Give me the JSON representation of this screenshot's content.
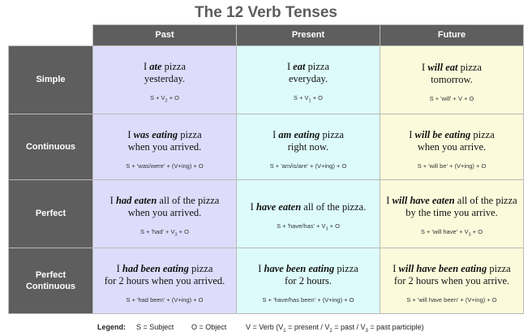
{
  "title": "The 12 Verb Tenses",
  "columns": [
    "Past",
    "Present",
    "Future"
  ],
  "rows": [
    {
      "label_lines": [
        "Simple"
      ],
      "cells": [
        {
          "parts": [
            {
              "t": "I "
            },
            {
              "t": "ate",
              "b": true
            },
            {
              "t": " pizza"
            },
            {
              "br": true
            },
            {
              "t": "yesterday."
            }
          ],
          "formula": [
            {
              "t": "S + V"
            },
            {
              "sub": "2"
            },
            {
              "t": " + O"
            }
          ]
        },
        {
          "parts": [
            {
              "t": "I "
            },
            {
              "t": "eat",
              "b": true
            },
            {
              "t": " pizza"
            },
            {
              "br": true
            },
            {
              "t": "everyday."
            }
          ],
          "formula": [
            {
              "t": "S + V"
            },
            {
              "sub": "1"
            },
            {
              "t": " + O"
            }
          ]
        },
        {
          "parts": [
            {
              "t": "I "
            },
            {
              "t": "will eat",
              "b": true
            },
            {
              "t": " pizza"
            },
            {
              "br": true
            },
            {
              "t": "tomorrow."
            }
          ],
          "formula": [
            {
              "t": "S + 'will' + V + O"
            }
          ]
        }
      ]
    },
    {
      "label_lines": [
        "Continuous"
      ],
      "cells": [
        {
          "parts": [
            {
              "t": "I "
            },
            {
              "t": "was eating",
              "b": true
            },
            {
              "t": " pizza"
            },
            {
              "br": true
            },
            {
              "t": "when you arrived."
            }
          ],
          "formula": [
            {
              "t": "S + 'was/were' + (V+ing) + O"
            }
          ]
        },
        {
          "parts": [
            {
              "t": "I "
            },
            {
              "t": "am eating",
              "b": true
            },
            {
              "t": " pizza"
            },
            {
              "br": true
            },
            {
              "t": "right now."
            }
          ],
          "formula": [
            {
              "t": "S + 'am/is/are' + (V+ing) + O"
            }
          ]
        },
        {
          "parts": [
            {
              "t": "I "
            },
            {
              "t": "will be eating",
              "b": true
            },
            {
              "t": " pizza"
            },
            {
              "br": true
            },
            {
              "t": "when you arrive."
            }
          ],
          "formula": [
            {
              "t": "S + 'will be' + (V+ing) + O"
            }
          ]
        }
      ]
    },
    {
      "label_lines": [
        "Perfect"
      ],
      "cells": [
        {
          "parts": [
            {
              "t": "I "
            },
            {
              "t": "had eaten",
              "b": true
            },
            {
              "t": " all of the pizza"
            },
            {
              "br": true
            },
            {
              "t": "when you arrived."
            }
          ],
          "formula": [
            {
              "t": "S + 'had' + V"
            },
            {
              "sub": "3"
            },
            {
              "t": " + O"
            }
          ]
        },
        {
          "parts": [
            {
              "t": "I "
            },
            {
              "t": "have eaten",
              "b": true
            },
            {
              "t": " all of the pizza."
            }
          ],
          "formula": [
            {
              "t": "S + 'have/has' + V"
            },
            {
              "sub": "3"
            },
            {
              "t": " + O"
            }
          ]
        },
        {
          "parts": [
            {
              "t": "I "
            },
            {
              "t": "will have eaten",
              "b": true
            },
            {
              "t": " all of the pizza"
            },
            {
              "br": true
            },
            {
              "t": "by the time you arrive."
            }
          ],
          "formula": [
            {
              "t": "S + 'will have' + V"
            },
            {
              "sub": "3"
            },
            {
              "t": " + O"
            }
          ]
        }
      ]
    },
    {
      "label_lines": [
        "Perfect",
        "Continuous"
      ],
      "cells": [
        {
          "parts": [
            {
              "t": "I "
            },
            {
              "t": "had been eating",
              "b": true
            },
            {
              "t": " pizza"
            },
            {
              "br": true
            },
            {
              "t": "for 2 hours when you arrived."
            }
          ],
          "formula": [
            {
              "t": "S + 'had been' + (V+ing) + O"
            }
          ]
        },
        {
          "parts": [
            {
              "t": "I "
            },
            {
              "t": "have been eating",
              "b": true
            },
            {
              "t": " pizza"
            },
            {
              "br": true
            },
            {
              "t": "for 2 hours."
            }
          ],
          "formula": [
            {
              "t": "S + 'have/has been' + (V+ing) + O"
            }
          ]
        },
        {
          "parts": [
            {
              "t": "I "
            },
            {
              "t": "will have been eating",
              "b": true
            },
            {
              "t": " pizza"
            },
            {
              "br": true
            },
            {
              "t": "for 2 hours when you arrive."
            }
          ],
          "formula": [
            {
              "t": "S + 'will have been' + (V+ing) + O"
            }
          ]
        }
      ]
    }
  ],
  "legend": {
    "label": "Legend:",
    "subject": "S = Subject",
    "object": "O = Object",
    "verb": [
      {
        "t": "V = Verb  (V"
      },
      {
        "sub": "1"
      },
      {
        "t": " = present  /  V"
      },
      {
        "sub": "2"
      },
      {
        "t": " = past  /  V"
      },
      {
        "sub": "3"
      },
      {
        "t": " = past participle)"
      }
    ]
  },
  "colors": {
    "header_bg": "#5e5e5e",
    "past_bg": "#ddddfb",
    "present_bg": "#ddfbfb",
    "future_bg": "#fbfbdc",
    "title_text": "#5c5c5c"
  }
}
